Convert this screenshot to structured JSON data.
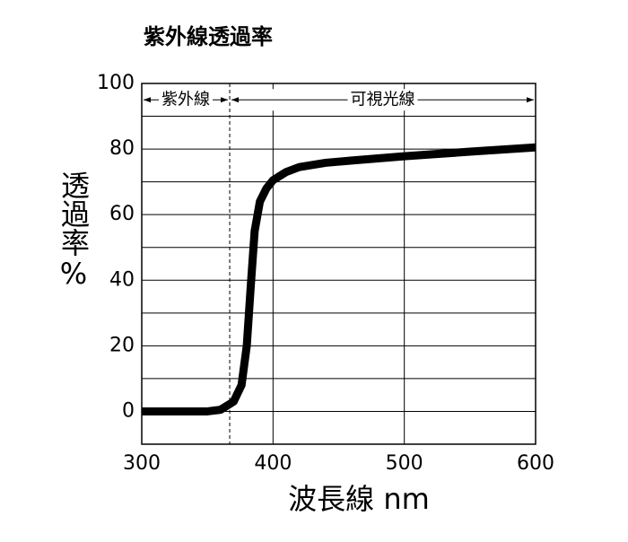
{
  "chart_data": {
    "type": "line",
    "title": "紫外線透過率",
    "x_label": "波長線 nm",
    "y_label": "透過率%",
    "x": [
      300,
      350,
      360,
      370,
      376,
      380,
      383,
      386,
      390,
      395,
      400,
      410,
      420,
      440,
      460,
      500,
      550,
      600
    ],
    "series": [
      {
        "name": "透過率",
        "color": "#000000",
        "values": [
          0,
          0,
          0.5,
          3,
          8,
          20,
          38,
          55,
          64,
          68,
          70.5,
          73,
          74.5,
          75.8,
          76.5,
          77.8,
          79.2,
          80.5
        ]
      }
    ],
    "xlim": [
      300,
      600
    ],
    "xticks": [
      300,
      400,
      500,
      600
    ],
    "ylim": [
      -10,
      100
    ],
    "yticks": [
      0,
      20,
      40,
      60,
      80,
      100
    ],
    "yminor": [
      10,
      30,
      50,
      70,
      90
    ],
    "uv_boundary": 367,
    "regions": [
      {
        "label": "紫外線",
        "range": [
          300,
          367
        ]
      },
      {
        "label": "可視光線",
        "range": [
          367,
          600
        ]
      }
    ],
    "grid": true
  }
}
